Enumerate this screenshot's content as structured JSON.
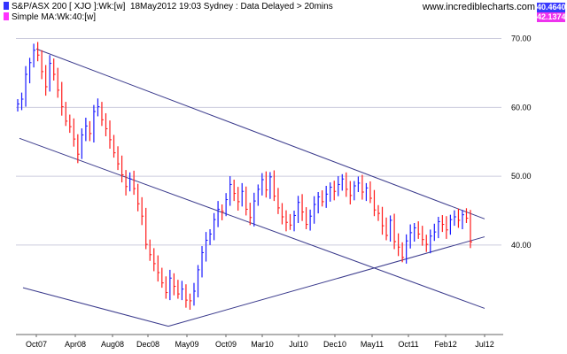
{
  "header": {
    "series_label": "S&P/ASX 200 [ XJO ]:Wk:[w]",
    "timestamp": "18May2012 19:03 Sydney : Data Delayed > 20mins",
    "ma_label": "Simple MA:Wk:40:[w]",
    "site": "www.incrediblecharts.com",
    "price_tag": "40.4640",
    "ma_tag": "42.1374",
    "colors": {
      "series": "#3333ff",
      "ma": "#ff33ff",
      "up": "#1a1aff",
      "down": "#ff1a1a",
      "channel": "#3a3a8c",
      "grid": "#ccccdd"
    }
  },
  "chart_data": {
    "type": "bar",
    "title": "S&P/ASX 200 [ XJO ]:Wk:[w]",
    "x_ticks": [
      "Oct07",
      "Apr08",
      "Aug08",
      "Dec08",
      "May09",
      "Oct09",
      "Mar10",
      "Jul10",
      "Dec10",
      "May11",
      "Oct11",
      "Feb12",
      "Jul12"
    ],
    "y_ticks": [
      "70.00",
      "60.00",
      "50.00",
      "40.00"
    ],
    "ylim": [
      27,
      72
    ],
    "grid": "horizontal",
    "series": [
      {
        "name": "S&P/ASX 200",
        "close": [
          60.5,
          61.2,
          64.8,
          66.5,
          68.3,
          67.6,
          65.2,
          63.0,
          66.4,
          64.8,
          62.5,
          60.1,
          58.0,
          57.2,
          55.4,
          53.2,
          56.0,
          57.3,
          56.2,
          59.4,
          60.1,
          58.2,
          56.9,
          55.3,
          53.4,
          51.8,
          50.2,
          48.5,
          49.6,
          48.2,
          46.0,
          44.2,
          40.1,
          38.6,
          37.3,
          36.0,
          34.5,
          33.1,
          35.2,
          34.0,
          32.9,
          33.6,
          32.0,
          31.9,
          33.3,
          36.4,
          38.9,
          40.7,
          41.6,
          43.7,
          45.2,
          44.9,
          46.6,
          48.8,
          47.5,
          46.3,
          47.8,
          45.2,
          44.0,
          46.4,
          48.1,
          49.5,
          48.0,
          49.9,
          47.1,
          45.4,
          44.1,
          43.3,
          42.9,
          44.3,
          46.2,
          44.8,
          43.0,
          44.2,
          45.9,
          47.0,
          46.3,
          47.4,
          48.4,
          47.8,
          48.8,
          49.6,
          48.1,
          47.2,
          48.6,
          49.0,
          47.7,
          48.3,
          46.8,
          45.1,
          44.6,
          42.8,
          41.4,
          43.6,
          40.5,
          39.7,
          38.2,
          40.6,
          41.8,
          42.5,
          41.6,
          40.8,
          40.1,
          41.3,
          41.9,
          43.4,
          43.0,
          42.2,
          43.7,
          44.1,
          43.6,
          44.4,
          43.9,
          40.46
        ],
        "ma40_current": 42.1374
      }
    ],
    "trend_lines": [
      {
        "from": [
          "Oct07",
          68.5
        ],
        "to": [
          "Jul12",
          43.8
        ]
      },
      {
        "from": [
          "Sep07",
          55.5
        ],
        "to": [
          "Jul12",
          30.8
        ]
      },
      {
        "from": [
          "Aug07",
          33.8
        ],
        "to": [
          "Mar09",
          28.2
        ]
      },
      {
        "from": [
          "Mar09",
          28.2
        ],
        "to": [
          "Jul12",
          41.2
        ]
      }
    ]
  }
}
